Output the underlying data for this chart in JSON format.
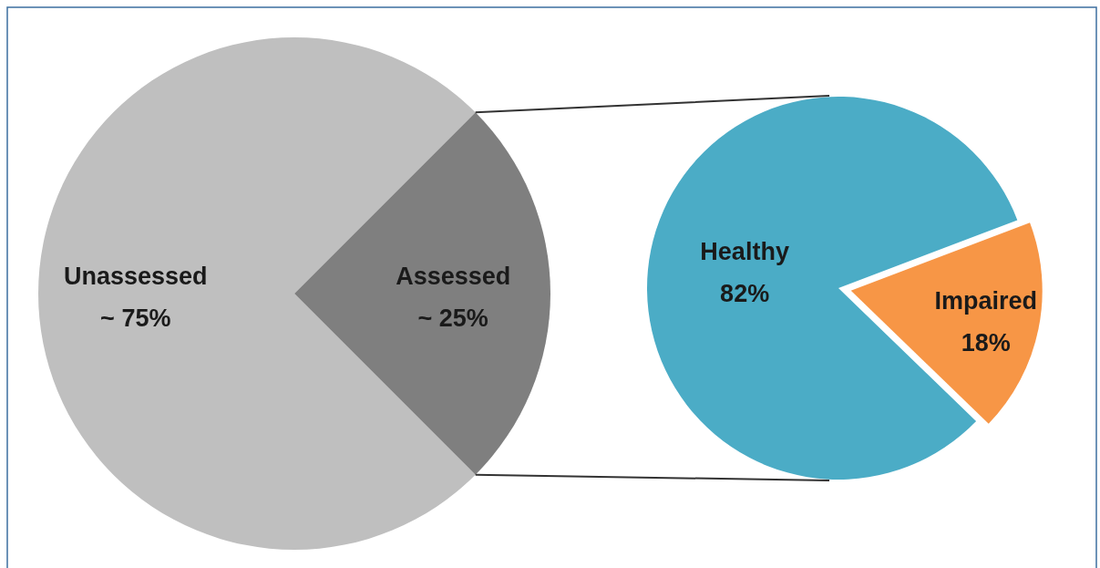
{
  "chart_data": [
    {
      "type": "pie",
      "categories": [
        "Unassessed",
        "Assessed"
      ],
      "values": [
        75,
        25
      ],
      "colors": [
        "#bfbfbf",
        "#7f7f7f"
      ],
      "value_labels": [
        "~ 75%",
        "~ 25%"
      ]
    },
    {
      "type": "pie",
      "categories": [
        "Healthy",
        "Impaired"
      ],
      "values": [
        82,
        18
      ],
      "colors": [
        "#4bacc6",
        "#f79646"
      ],
      "value_labels": [
        "82%",
        "18%"
      ]
    }
  ]
}
